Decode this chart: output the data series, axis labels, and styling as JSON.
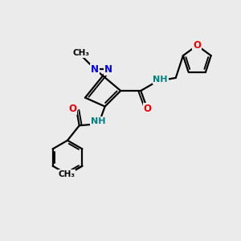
{
  "bg_color": "#ebebeb",
  "N_color": "#0000ee",
  "O_color": "#ee0000",
  "NH_color": "#008080",
  "bond_color": "#000000",
  "figsize": [
    3.0,
    3.0
  ],
  "dpi": 100,
  "xlim": [
    0,
    10
  ],
  "ylim": [
    0,
    10
  ],
  "lw": 1.6,
  "lw_double": 1.3,
  "double_sep": 0.13,
  "font_size_atom": 8.5,
  "font_size_small": 7.5
}
